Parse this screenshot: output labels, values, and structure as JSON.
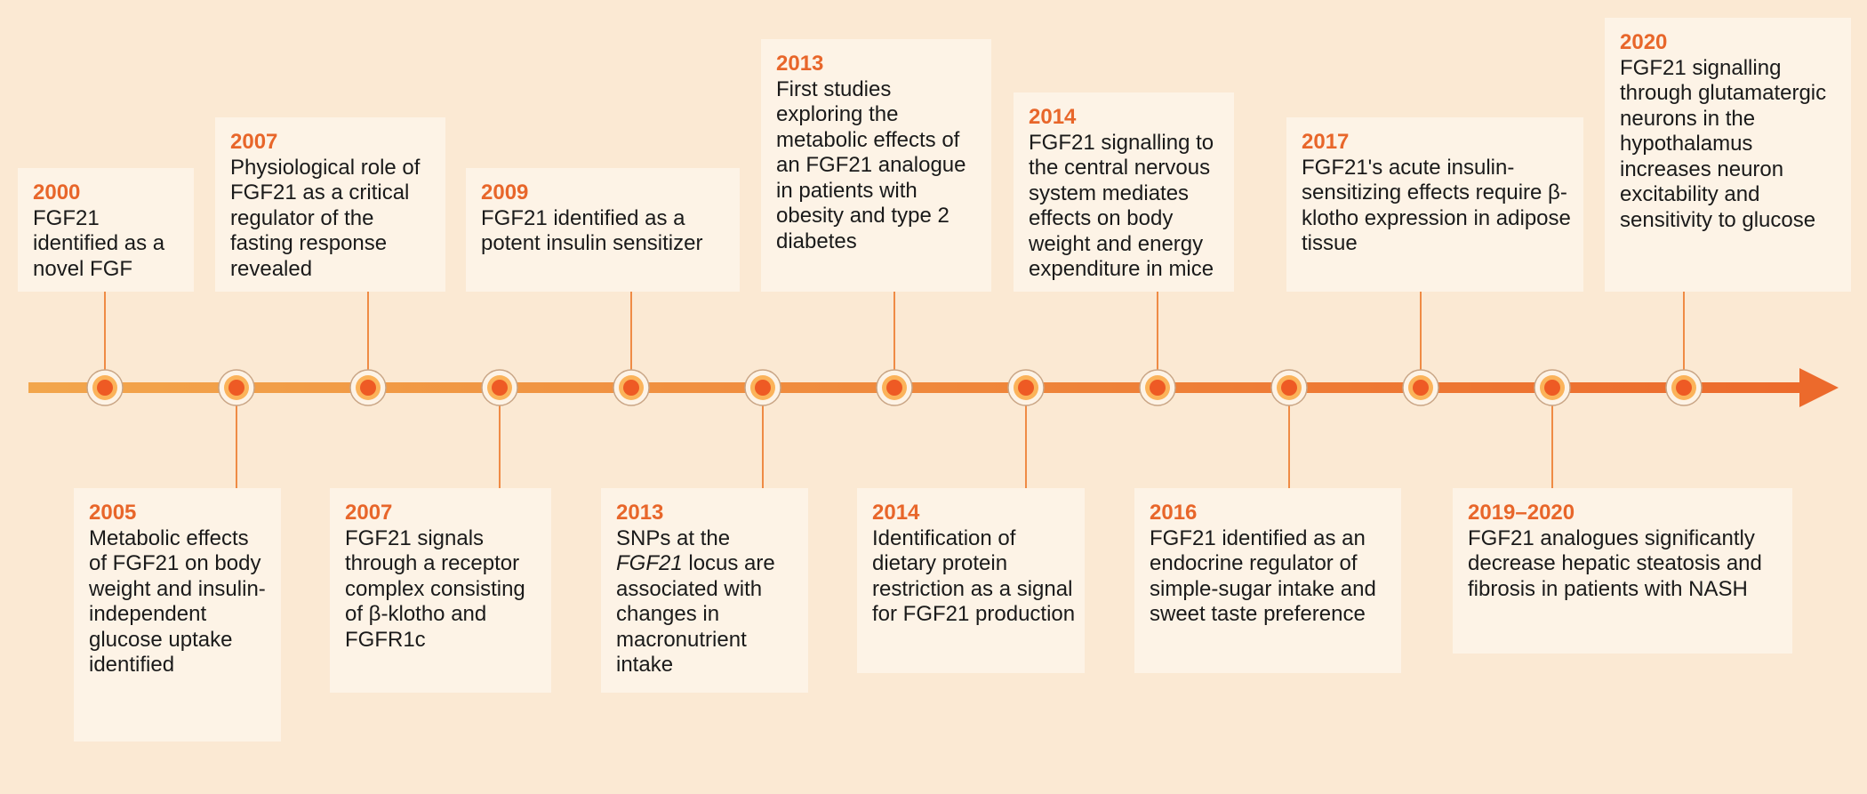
{
  "events": [
    {
      "year": "2000",
      "text": "FGF21 identified as a novel FGF"
    },
    {
      "year": "2005",
      "text": "Metabolic effects of FGF21 on body weight and insulin-independent glucose uptake identified"
    },
    {
      "year": "2007",
      "text": "Physiological role of FGF21 as a critical regulator of the fasting response revealed"
    },
    {
      "year": "2007",
      "text": "FGF21 signals through a receptor complex consisting of β-klotho and FGFR1c"
    },
    {
      "year": "2009",
      "text": "FGF21 identified as a potent insulin sensitizer"
    },
    {
      "year": "2013",
      "text_before": "SNPs at the ",
      "text_italic": "FGF21",
      "text_after": " locus are associated with changes in macronutrient intake"
    },
    {
      "year": "2013",
      "text": "First studies exploring the metabolic effects of an FGF21 analogue in patients with obesity and type 2 diabetes"
    },
    {
      "year": "2014",
      "text": "Identification of dietary protein restriction as a signal for FGF21 production"
    },
    {
      "year": "2014",
      "text": "FGF21 signalling to the central nervous system mediates effects on body weight and energy expenditure in mice"
    },
    {
      "year": "2016",
      "text": "FGF21 identified as an endocrine regulator of simple-sugar intake and sweet taste preference"
    },
    {
      "year": "2017",
      "text": "FGF21's acute insulin-sensitizing effects require β-klotho expression in adipose tissue"
    },
    {
      "year": "2019–2020",
      "text": "FGF21 analogues significantly decrease hepatic steatosis and fibrosis in patients with NASH"
    },
    {
      "year": "2020",
      "text": "FGF21 signalling through glutamatergic neurons in the hypothalamus increases neuron excitability and sensitivity to glucose"
    }
  ],
  "colors": {
    "background": "#fbe9d3",
    "box": "#fdf3e6",
    "year": "#e8662a",
    "connector": "#ef8b45",
    "axis_start": "#f2a64c",
    "axis_end": "#ec6a2c",
    "node_ring": "#fbb35a",
    "node_center": "#ee5a24"
  }
}
